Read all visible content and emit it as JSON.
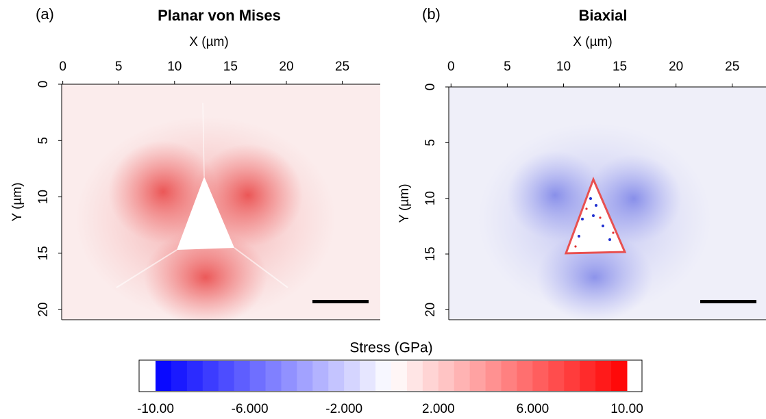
{
  "chart_data": [
    {
      "type": "heatmap",
      "panel_label": "(a)",
      "title": "Planar von Mises",
      "xlabel": "X (µm)",
      "ylabel": "Y (µm)",
      "xlim": [
        -0.1,
        28.4
      ],
      "ylim": [
        0,
        20.9
      ],
      "xticks": [
        0,
        5,
        10,
        15,
        20,
        25
      ],
      "yticks": [
        0,
        5,
        10,
        15,
        20
      ],
      "y_inverted": true
    },
    {
      "type": "heatmap",
      "panel_label": "(b)",
      "title": "Biaxial",
      "xlabel": "X (µm)",
      "ylabel": "Y (µm)",
      "xlim": [
        -0.2,
        28.0
      ],
      "ylim": [
        0,
        20.9
      ],
      "xticks": [
        0,
        5,
        10,
        15,
        20,
        25
      ],
      "yticks": [
        0,
        5,
        10,
        15,
        20
      ],
      "y_inverted": true
    },
    {
      "type": "colorbar",
      "title": "Stress (GPa)",
      "clim": [
        -10,
        10
      ],
      "ticks": [
        {
          "value": -10,
          "label": "-10.00"
        },
        {
          "value": -6,
          "label": "-6.000"
        },
        {
          "value": -2,
          "label": "-2.000"
        },
        {
          "value": 2,
          "label": "2.000"
        },
        {
          "value": 6,
          "label": "6.000"
        },
        {
          "value": 10,
          "label": "10.00"
        }
      ],
      "colors": [
        "#0000ff",
        "#ffffff",
        "#ff0000"
      ]
    }
  ]
}
